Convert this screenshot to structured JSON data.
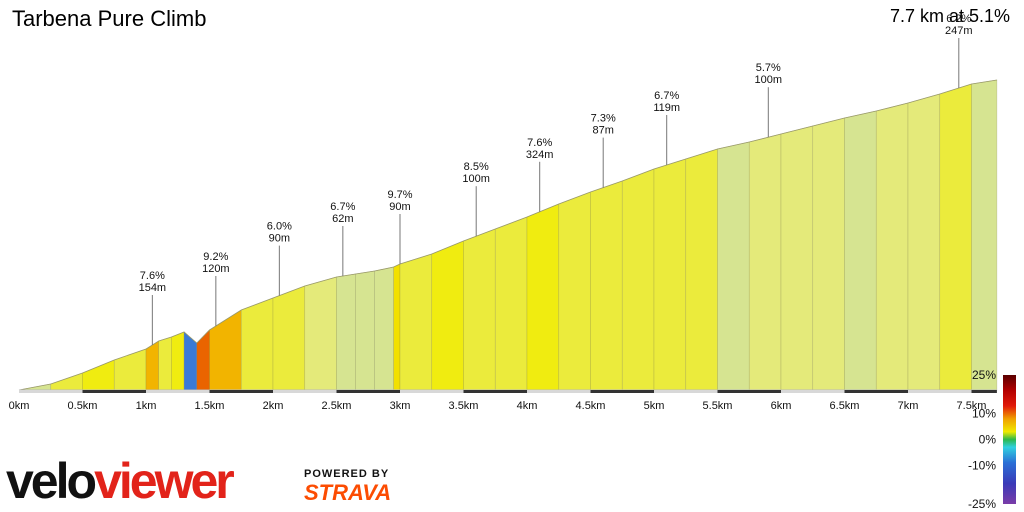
{
  "header": {
    "title": "Tarbena Pure Climb",
    "summary": "7.7 km at 5.1%"
  },
  "branding": {
    "logo_text": "veloviewer",
    "powered_by": "POWERED BY",
    "strava": "STRAVA"
  },
  "colors": {
    "brand_red": "#e2231a",
    "strava_orange": "#fc4c02",
    "km_band": "#333333"
  },
  "legend": {
    "labels": [
      "25%",
      "10%",
      "0%",
      "-10%",
      "-25%"
    ],
    "values": [
      25,
      10,
      0,
      -10,
      -25
    ]
  },
  "chart_data": {
    "type": "area",
    "title": "Tarbena Pure Climb",
    "xlabel": "",
    "ylabel": "",
    "x_unit": "km",
    "xlim": [
      0,
      7.7
    ],
    "ylim": [
      0,
      385
    ],
    "x_ticks": [
      "0km",
      "0.5km",
      "1km",
      "1.5km",
      "2km",
      "2.5km",
      "3km",
      "3.5km",
      "4km",
      "4.5km",
      "5km",
      "5.5km",
      "6km",
      "6.5km",
      "7km",
      "7.5km"
    ],
    "x_tick_values": [
      0,
      0.5,
      1,
      1.5,
      2,
      2.5,
      3,
      3.5,
      4,
      4.5,
      5,
      5.5,
      6,
      6.5,
      7,
      7.5
    ],
    "profile": {
      "distance_km": [
        0,
        0.25,
        0.5,
        0.75,
        1.0,
        1.1,
        1.2,
        1.3,
        1.4,
        1.5,
        1.75,
        2.0,
        2.25,
        2.5,
        2.65,
        2.8,
        2.95,
        3.0,
        3.25,
        3.5,
        3.75,
        4.0,
        4.25,
        4.5,
        4.75,
        5.0,
        5.25,
        5.5,
        5.75,
        6.0,
        6.25,
        6.5,
        6.75,
        7.0,
        7.25,
        7.5,
        7.7
      ],
      "elevation_m": [
        0,
        6,
        17,
        30,
        41,
        49,
        53,
        58,
        47,
        60,
        80,
        92,
        104,
        113,
        116,
        119,
        123,
        126,
        136,
        149,
        161,
        173,
        186,
        198,
        209,
        221,
        231,
        241,
        248,
        256,
        264,
        272,
        279,
        287,
        296,
        306,
        310
      ],
      "segment_gradient_pct": [
        2.4,
        4.4,
        5.2,
        4.4,
        8,
        4,
        5,
        -11,
        13,
        8,
        4.8,
        4.8,
        3.6,
        2,
        2,
        2.7,
        6,
        4,
        5.2,
        4.8,
        4.8,
        5.2,
        4.8,
        4.4,
        4.8,
        4,
        4,
        2.8,
        3.2,
        3.2,
        3.2,
        2.8,
        3.2,
        3.6,
        4,
        2
      ]
    },
    "annotations": [
      {
        "x": 1.05,
        "grade": "7.6%",
        "length": "154m"
      },
      {
        "x": 1.55,
        "grade": "9.2%",
        "length": "120m"
      },
      {
        "x": 2.05,
        "grade": "6.0%",
        "length": "90m"
      },
      {
        "x": 2.55,
        "grade": "6.7%",
        "length": "62m"
      },
      {
        "x": 3.0,
        "grade": "9.7%",
        "length": "90m"
      },
      {
        "x": 3.6,
        "grade": "8.5%",
        "length": "100m"
      },
      {
        "x": 4.1,
        "grade": "7.6%",
        "length": "324m"
      },
      {
        "x": 4.6,
        "grade": "7.3%",
        "length": "87m"
      },
      {
        "x": 5.1,
        "grade": "6.7%",
        "length": "119m"
      },
      {
        "x": 5.9,
        "grade": "5.7%",
        "length": "100m"
      },
      {
        "x": 7.4,
        "grade": "6.2%",
        "length": "247m"
      }
    ]
  }
}
